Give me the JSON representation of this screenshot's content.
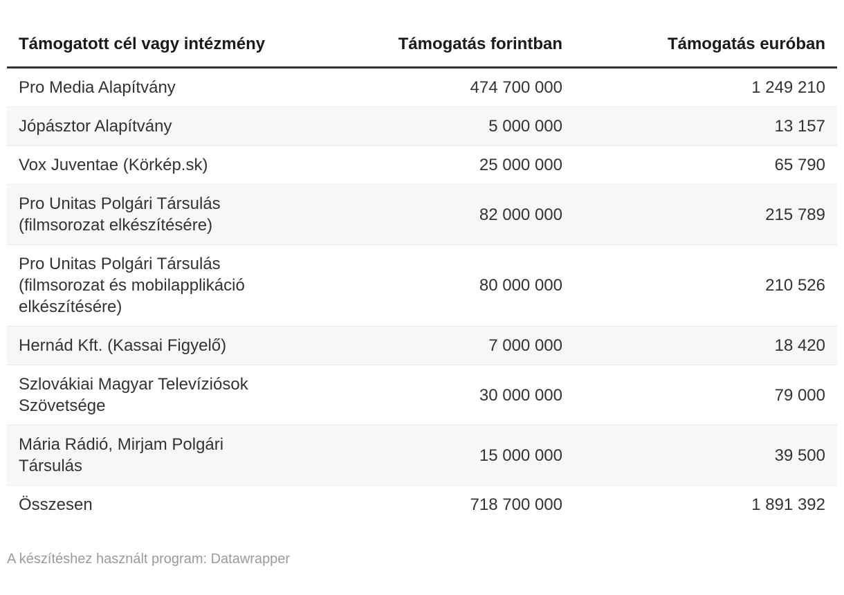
{
  "table": {
    "columns": [
      {
        "label": "Támogatott cél vagy intézmény",
        "align": "left"
      },
      {
        "label": "Támogatás forintban",
        "align": "right"
      },
      {
        "label": "Támogatás euróban",
        "align": "right"
      }
    ],
    "rows": [
      {
        "name": "Pro Media Alapítvány",
        "forint": "474 700 000",
        "euro": "1 249 210"
      },
      {
        "name": "Jópásztor Alapítvány",
        "forint": "5 000 000",
        "euro": "13 157"
      },
      {
        "name": "Vox Juventae (Körkép.sk)",
        "forint": "25 000 000",
        "euro": "65 790"
      },
      {
        "name": "Pro Unitas Polgári Társulás (filmsorozat elkészítésére)",
        "forint": "82 000 000",
        "euro": "215 789"
      },
      {
        "name": "Pro Unitas Polgári Társulás (filmsorozat és mobilapplikáció elkészítésére)",
        "forint": "80 000 000",
        "euro": "210 526"
      },
      {
        "name": "Hernád Kft. (Kassai Figyelő)",
        "forint": "7 000 000",
        "euro": "18 420"
      },
      {
        "name": "Szlovákiai Magyar Televíziósok Szövetsége",
        "forint": "30 000 000",
        "euro": "79 000"
      },
      {
        "name": "Mária Rádió, Mirjam Polgári Társulás",
        "forint": "15 000 000",
        "euro": "39 500"
      },
      {
        "name": "Összesen",
        "forint": "718 700 000",
        "euro": "1 891 392"
      }
    ]
  },
  "footer": {
    "text": "A készítéshez használt program: Datawrapper"
  },
  "colors": {
    "header_text": "#1a1a1a",
    "body_text": "#333333",
    "header_rule": "#333333",
    "row_stripe": "#f7f7f7",
    "row_border": "#e9e9e9",
    "footer_text": "#9b9b9b"
  },
  "chart_data": {
    "type": "table",
    "title": "",
    "columns": [
      "Támogatott cél vagy intézmény",
      "Támogatás forintban",
      "Támogatás euróban"
    ],
    "rows": [
      [
        "Pro Media Alapítvány",
        474700000,
        1249210
      ],
      [
        "Jópásztor Alapítvány",
        5000000,
        13157
      ],
      [
        "Vox Juventae (Körkép.sk)",
        25000000,
        65790
      ],
      [
        "Pro Unitas Polgári Társulás (filmsorozat elkészítésére)",
        82000000,
        215789
      ],
      [
        "Pro Unitas Polgári Társulás (filmsorozat és mobilapplikáció elkészítésére)",
        80000000,
        210526
      ],
      [
        "Hernád Kft. (Kassai Figyelő)",
        7000000,
        18420
      ],
      [
        "Szlovákiai Magyar Televíziósok Szövetsége",
        30000000,
        79000
      ],
      [
        "Mária Rádió, Mirjam Polgári Társulás",
        15000000,
        39500
      ],
      [
        "Összesen",
        718700000,
        1891392
      ]
    ],
    "notes": "Zebra-striped Datawrapper table; numeric columns right-aligned; last row is the total (Összesen)."
  }
}
